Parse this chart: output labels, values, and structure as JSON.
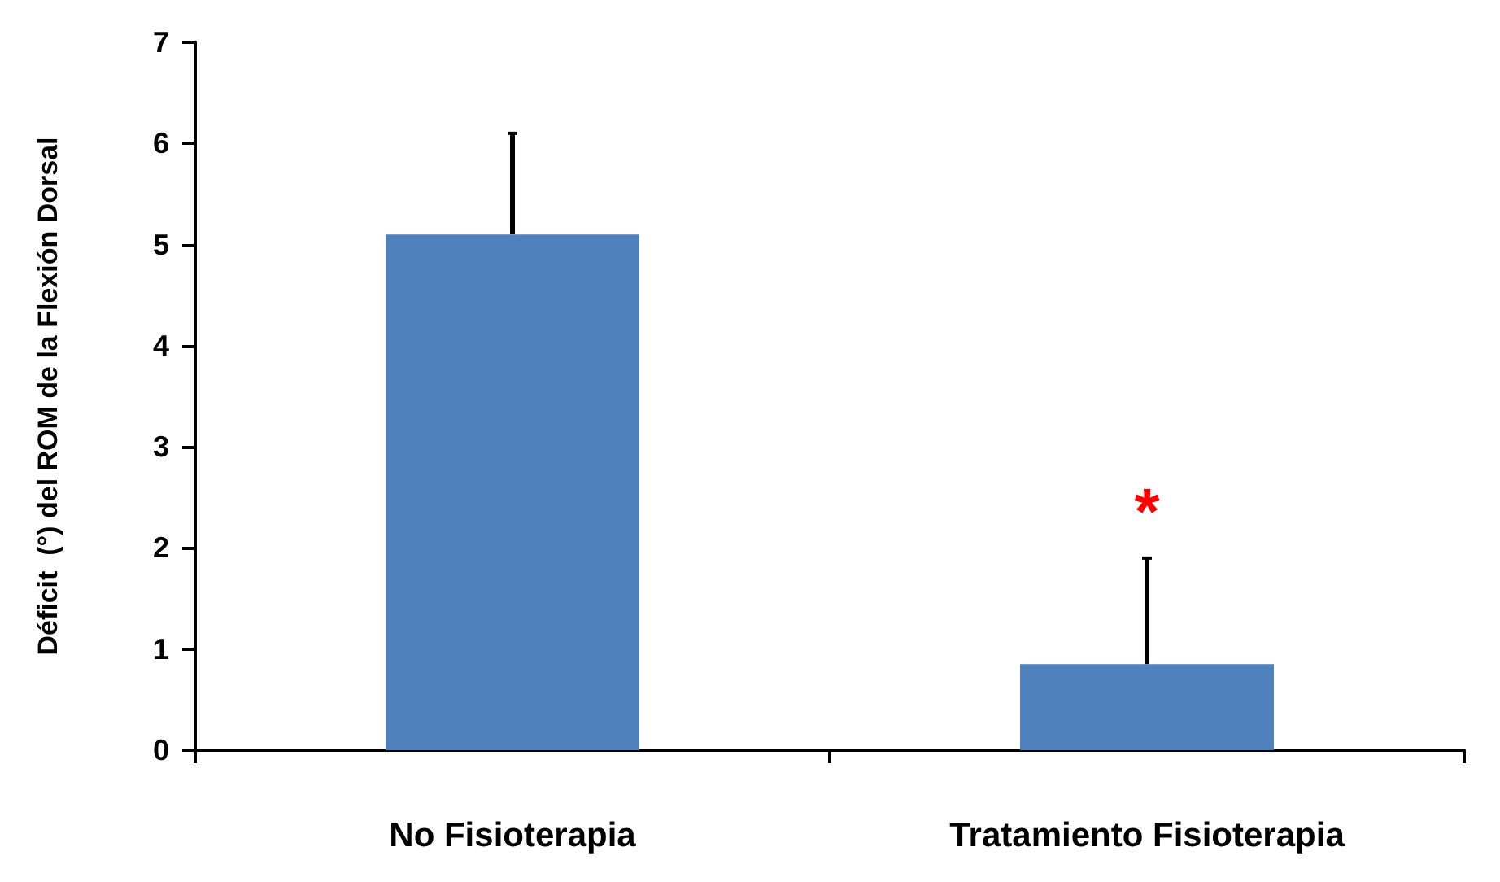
{
  "chart_data": {
    "type": "bar",
    "ylabel": "Déficit  (°) del ROM de la Flexión Dorsal",
    "categories": [
      "No Fisioterapia",
      "Tratamiento Fisioterapia"
    ],
    "values": [
      5.1,
      0.85
    ],
    "color": "#4f81bd",
    "errors": [
      [
        5.1,
        6.1
      ],
      [
        0.85,
        1.9
      ]
    ],
    "ylim": [
      0,
      7
    ],
    "yticks": [
      0,
      1,
      2,
      3,
      4,
      5,
      6,
      7
    ],
    "grid": false,
    "annotations": [
      "*"
    ]
  }
}
